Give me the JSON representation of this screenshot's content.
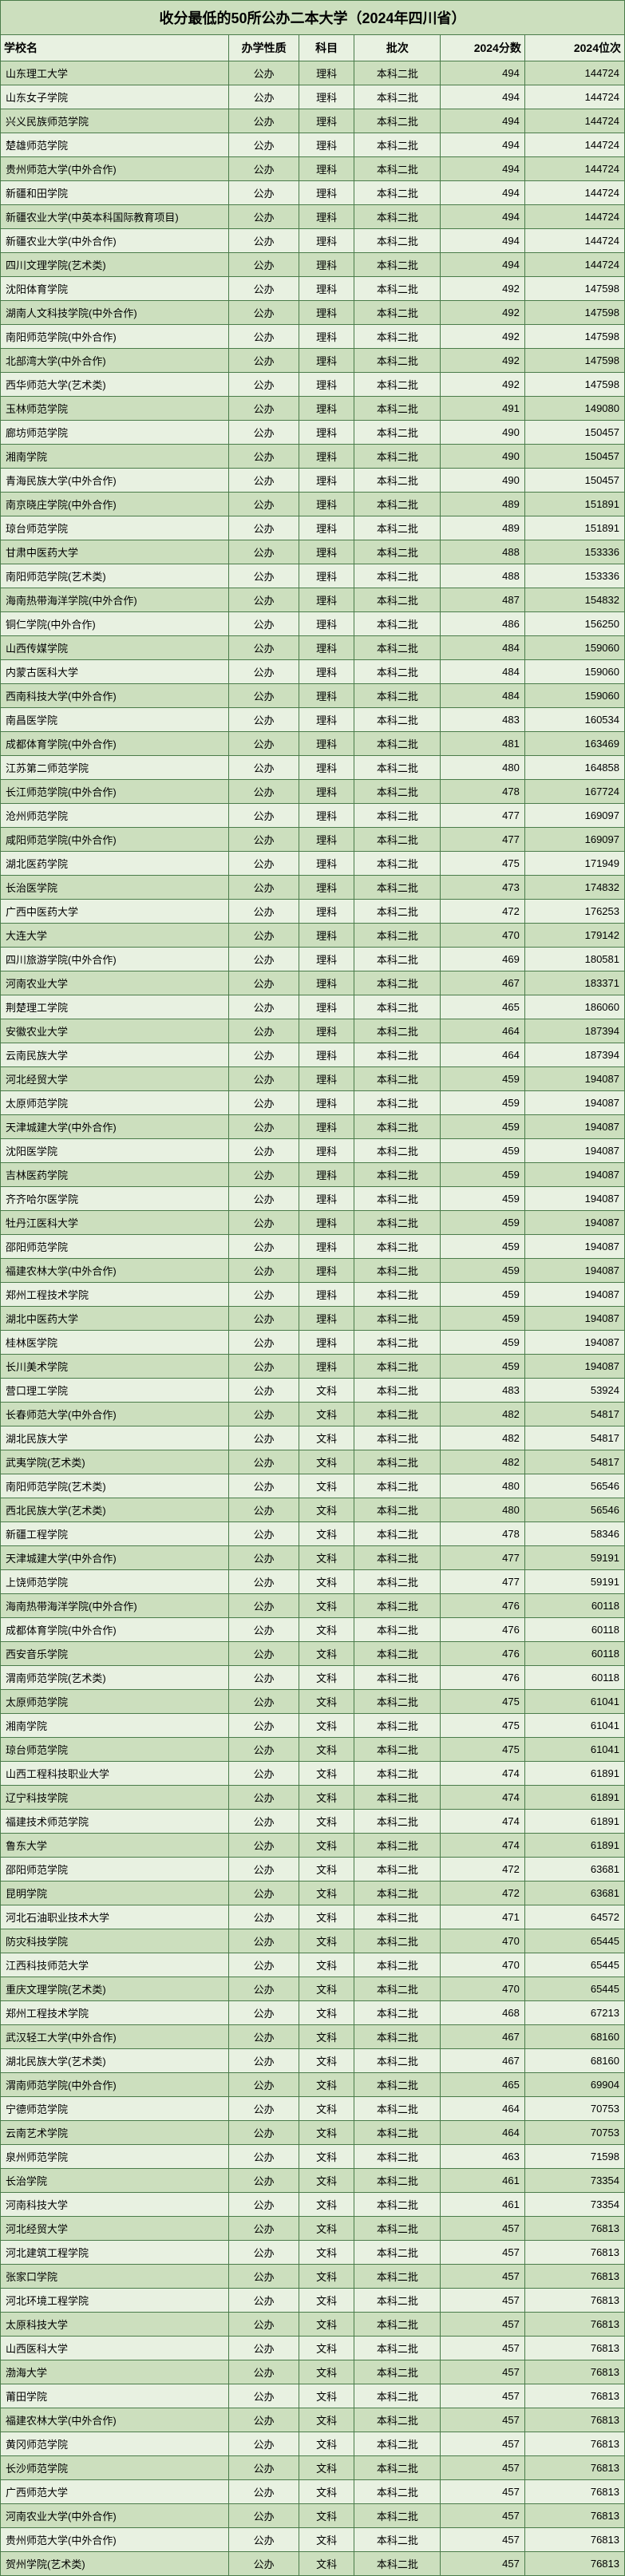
{
  "title": "收分最低的50所公办二本大学（2024年四川省）",
  "headers": [
    "学校名",
    "办学性质",
    "科目",
    "批次",
    "2024分数",
    "2024位次"
  ],
  "colors": {
    "odd_row": "#ccdfbe",
    "even_row": "#e8f1e1",
    "border": "#4a7c4a",
    "text": "#000000"
  },
  "common": {
    "type": "公办",
    "batch": "本科二批"
  },
  "rows": [
    {
      "name": "山东理工大学",
      "subj": "理科",
      "score": 494,
      "rank": 144724
    },
    {
      "name": "山东女子学院",
      "subj": "理科",
      "score": 494,
      "rank": 144724
    },
    {
      "name": "兴义民族师范学院",
      "subj": "理科",
      "score": 494,
      "rank": 144724
    },
    {
      "name": "楚雄师范学院",
      "subj": "理科",
      "score": 494,
      "rank": 144724
    },
    {
      "name": "贵州师范大学(中外合作)",
      "subj": "理科",
      "score": 494,
      "rank": 144724
    },
    {
      "name": "新疆和田学院",
      "subj": "理科",
      "score": 494,
      "rank": 144724
    },
    {
      "name": "新疆农业大学(中英本科国际教育项目)",
      "subj": "理科",
      "score": 494,
      "rank": 144724
    },
    {
      "name": "新疆农业大学(中外合作)",
      "subj": "理科",
      "score": 494,
      "rank": 144724
    },
    {
      "name": "四川文理学院(艺术类)",
      "subj": "理科",
      "score": 494,
      "rank": 144724
    },
    {
      "name": "沈阳体育学院",
      "subj": "理科",
      "score": 492,
      "rank": 147598
    },
    {
      "name": "湖南人文科技学院(中外合作)",
      "subj": "理科",
      "score": 492,
      "rank": 147598
    },
    {
      "name": "南阳师范学院(中外合作)",
      "subj": "理科",
      "score": 492,
      "rank": 147598
    },
    {
      "name": "北部湾大学(中外合作)",
      "subj": "理科",
      "score": 492,
      "rank": 147598
    },
    {
      "name": "西华师范大学(艺术类)",
      "subj": "理科",
      "score": 492,
      "rank": 147598
    },
    {
      "name": "玉林师范学院",
      "subj": "理科",
      "score": 491,
      "rank": 149080
    },
    {
      "name": "廊坊师范学院",
      "subj": "理科",
      "score": 490,
      "rank": 150457
    },
    {
      "name": "湘南学院",
      "subj": "理科",
      "score": 490,
      "rank": 150457
    },
    {
      "name": "青海民族大学(中外合作)",
      "subj": "理科",
      "score": 490,
      "rank": 150457
    },
    {
      "name": "南京晓庄学院(中外合作)",
      "subj": "理科",
      "score": 489,
      "rank": 151891
    },
    {
      "name": "琼台师范学院",
      "subj": "理科",
      "score": 489,
      "rank": 151891
    },
    {
      "name": "甘肃中医药大学",
      "subj": "理科",
      "score": 488,
      "rank": 153336
    },
    {
      "name": "南阳师范学院(艺术类)",
      "subj": "理科",
      "score": 488,
      "rank": 153336
    },
    {
      "name": "海南热带海洋学院(中外合作)",
      "subj": "理科",
      "score": 487,
      "rank": 154832
    },
    {
      "name": "铜仁学院(中外合作)",
      "subj": "理科",
      "score": 486,
      "rank": 156250
    },
    {
      "name": "山西传媒学院",
      "subj": "理科",
      "score": 484,
      "rank": 159060
    },
    {
      "name": "内蒙古医科大学",
      "subj": "理科",
      "score": 484,
      "rank": 159060
    },
    {
      "name": "西南科技大学(中外合作)",
      "subj": "理科",
      "score": 484,
      "rank": 159060
    },
    {
      "name": "南昌医学院",
      "subj": "理科",
      "score": 483,
      "rank": 160534
    },
    {
      "name": "成都体育学院(中外合作)",
      "subj": "理科",
      "score": 481,
      "rank": 163469
    },
    {
      "name": "江苏第二师范学院",
      "subj": "理科",
      "score": 480,
      "rank": 164858
    },
    {
      "name": "长江师范学院(中外合作)",
      "subj": "理科",
      "score": 478,
      "rank": 167724
    },
    {
      "name": "沧州师范学院",
      "subj": "理科",
      "score": 477,
      "rank": 169097
    },
    {
      "name": "咸阳师范学院(中外合作)",
      "subj": "理科",
      "score": 477,
      "rank": 169097
    },
    {
      "name": "湖北医药学院",
      "subj": "理科",
      "score": 475,
      "rank": 171949
    },
    {
      "name": "长治医学院",
      "subj": "理科",
      "score": 473,
      "rank": 174832
    },
    {
      "name": "广西中医药大学",
      "subj": "理科",
      "score": 472,
      "rank": 176253
    },
    {
      "name": "大连大学",
      "subj": "理科",
      "score": 470,
      "rank": 179142
    },
    {
      "name": "四川旅游学院(中外合作)",
      "subj": "理科",
      "score": 469,
      "rank": 180581
    },
    {
      "name": "河南农业大学",
      "subj": "理科",
      "score": 467,
      "rank": 183371
    },
    {
      "name": "荆楚理工学院",
      "subj": "理科",
      "score": 465,
      "rank": 186060
    },
    {
      "name": "安徽农业大学",
      "subj": "理科",
      "score": 464,
      "rank": 187394
    },
    {
      "name": "云南民族大学",
      "subj": "理科",
      "score": 464,
      "rank": 187394
    },
    {
      "name": "河北经贸大学",
      "subj": "理科",
      "score": 459,
      "rank": 194087
    },
    {
      "name": "太原师范学院",
      "subj": "理科",
      "score": 459,
      "rank": 194087
    },
    {
      "name": "天津城建大学(中外合作)",
      "subj": "理科",
      "score": 459,
      "rank": 194087
    },
    {
      "name": "沈阳医学院",
      "subj": "理科",
      "score": 459,
      "rank": 194087
    },
    {
      "name": "吉林医药学院",
      "subj": "理科",
      "score": 459,
      "rank": 194087
    },
    {
      "name": "齐齐哈尔医学院",
      "subj": "理科",
      "score": 459,
      "rank": 194087
    },
    {
      "name": "牡丹江医科大学",
      "subj": "理科",
      "score": 459,
      "rank": 194087
    },
    {
      "name": "邵阳师范学院",
      "subj": "理科",
      "score": 459,
      "rank": 194087
    },
    {
      "name": "福建农林大学(中外合作)",
      "subj": "理科",
      "score": 459,
      "rank": 194087
    },
    {
      "name": "郑州工程技术学院",
      "subj": "理科",
      "score": 459,
      "rank": 194087
    },
    {
      "name": "湖北中医药大学",
      "subj": "理科",
      "score": 459,
      "rank": 194087
    },
    {
      "name": "桂林医学院",
      "subj": "理科",
      "score": 459,
      "rank": 194087
    },
    {
      "name": "长川美术学院",
      "subj": "理科",
      "score": 459,
      "rank": 194087
    },
    {
      "name": "营口理工学院",
      "subj": "文科",
      "score": 483,
      "rank": 53924
    },
    {
      "name": "长春师范大学(中外合作)",
      "subj": "文科",
      "score": 482,
      "rank": 54817
    },
    {
      "name": "湖北民族大学",
      "subj": "文科",
      "score": 482,
      "rank": 54817
    },
    {
      "name": "武夷学院(艺术类)",
      "subj": "文科",
      "score": 482,
      "rank": 54817
    },
    {
      "name": "南阳师范学院(艺术类)",
      "subj": "文科",
      "score": 480,
      "rank": 56546
    },
    {
      "name": "西北民族大学(艺术类)",
      "subj": "文科",
      "score": 480,
      "rank": 56546
    },
    {
      "name": "新疆工程学院",
      "subj": "文科",
      "score": 478,
      "rank": 58346
    },
    {
      "name": "天津城建大学(中外合作)",
      "subj": "文科",
      "score": 477,
      "rank": 59191
    },
    {
      "name": "上饶师范学院",
      "subj": "文科",
      "score": 477,
      "rank": 59191
    },
    {
      "name": "海南热带海洋学院(中外合作)",
      "subj": "文科",
      "score": 476,
      "rank": 60118
    },
    {
      "name": "成都体育学院(中外合作)",
      "subj": "文科",
      "score": 476,
      "rank": 60118
    },
    {
      "name": "西安音乐学院",
      "subj": "文科",
      "score": 476,
      "rank": 60118
    },
    {
      "name": "渭南师范学院(艺术类)",
      "subj": "文科",
      "score": 476,
      "rank": 60118
    },
    {
      "name": "太原师范学院",
      "subj": "文科",
      "score": 475,
      "rank": 61041
    },
    {
      "name": "湘南学院",
      "subj": "文科",
      "score": 475,
      "rank": 61041
    },
    {
      "name": "琼台师范学院",
      "subj": "文科",
      "score": 475,
      "rank": 61041
    },
    {
      "name": "山西工程科技职业大学",
      "subj": "文科",
      "score": 474,
      "rank": 61891
    },
    {
      "name": "辽宁科技学院",
      "subj": "文科",
      "score": 474,
      "rank": 61891
    },
    {
      "name": "福建技术师范学院",
      "subj": "文科",
      "score": 474,
      "rank": 61891
    },
    {
      "name": "鲁东大学",
      "subj": "文科",
      "score": 474,
      "rank": 61891
    },
    {
      "name": "邵阳师范学院",
      "subj": "文科",
      "score": 472,
      "rank": 63681
    },
    {
      "name": "昆明学院",
      "subj": "文科",
      "score": 472,
      "rank": 63681
    },
    {
      "name": "河北石油职业技术大学",
      "subj": "文科",
      "score": 471,
      "rank": 64572
    },
    {
      "name": "防灾科技学院",
      "subj": "文科",
      "score": 470,
      "rank": 65445
    },
    {
      "name": "江西科技师范大学",
      "subj": "文科",
      "score": 470,
      "rank": 65445
    },
    {
      "name": "重庆文理学院(艺术类)",
      "subj": "文科",
      "score": 470,
      "rank": 65445
    },
    {
      "name": "郑州工程技术学院",
      "subj": "文科",
      "score": 468,
      "rank": 67213
    },
    {
      "name": "武汉轻工大学(中外合作)",
      "subj": "文科",
      "score": 467,
      "rank": 68160
    },
    {
      "name": "湖北民族大学(艺术类)",
      "subj": "文科",
      "score": 467,
      "rank": 68160
    },
    {
      "name": "渭南师范学院(中外合作)",
      "subj": "文科",
      "score": 465,
      "rank": 69904
    },
    {
      "name": "宁德师范学院",
      "subj": "文科",
      "score": 464,
      "rank": 70753
    },
    {
      "name": "云南艺术学院",
      "subj": "文科",
      "score": 464,
      "rank": 70753
    },
    {
      "name": "泉州师范学院",
      "subj": "文科",
      "score": 463,
      "rank": 71598
    },
    {
      "name": "长治学院",
      "subj": "文科",
      "score": 461,
      "rank": 73354
    },
    {
      "name": "河南科技大学",
      "subj": "文科",
      "score": 461,
      "rank": 73354
    },
    {
      "name": "河北经贸大学",
      "subj": "文科",
      "score": 457,
      "rank": 76813
    },
    {
      "name": "河北建筑工程学院",
      "subj": "文科",
      "score": 457,
      "rank": 76813
    },
    {
      "name": "张家口学院",
      "subj": "文科",
      "score": 457,
      "rank": 76813
    },
    {
      "name": "河北环境工程学院",
      "subj": "文科",
      "score": 457,
      "rank": 76813
    },
    {
      "name": "太原科技大学",
      "subj": "文科",
      "score": 457,
      "rank": 76813
    },
    {
      "name": "山西医科大学",
      "subj": "文科",
      "score": 457,
      "rank": 76813
    },
    {
      "name": "渤海大学",
      "subj": "文科",
      "score": 457,
      "rank": 76813
    },
    {
      "name": "莆田学院",
      "subj": "文科",
      "score": 457,
      "rank": 76813
    },
    {
      "name": "福建农林大学(中外合作)",
      "subj": "文科",
      "score": 457,
      "rank": 76813
    },
    {
      "name": "黄冈师范学院",
      "subj": "文科",
      "score": 457,
      "rank": 76813
    },
    {
      "name": "长沙师范学院",
      "subj": "文科",
      "score": 457,
      "rank": 76813
    },
    {
      "name": "广西师范大学",
      "subj": "文科",
      "score": 457,
      "rank": 76813
    },
    {
      "name": "河南农业大学(中外合作)",
      "subj": "文科",
      "score": 457,
      "rank": 76813
    },
    {
      "name": "贵州师范大学(中外合作)",
      "subj": "文科",
      "score": 457,
      "rank": 76813
    },
    {
      "name": "贺州学院(艺术类)",
      "subj": "文科",
      "score": 457,
      "rank": 76813
    }
  ]
}
